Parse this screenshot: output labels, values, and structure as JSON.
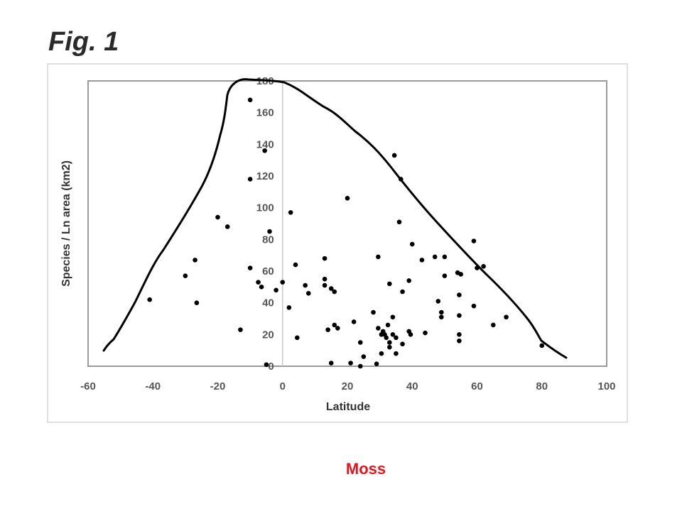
{
  "figure": {
    "title": "Fig. 1",
    "caption": "Moss"
  },
  "chart_data": {
    "type": "scatter",
    "xlabel": "Latitude",
    "ylabel": "Species / Ln area (km2)",
    "xlim": [
      -60,
      100
    ],
    "ylim": [
      0,
      180
    ],
    "xticks": [
      "-60",
      "-40",
      "-20",
      "0",
      "20",
      "40",
      "60",
      "80",
      "100"
    ],
    "yticks": [
      "0",
      "20",
      "40",
      "60",
      "80",
      "100",
      "120",
      "140",
      "160",
      "180"
    ],
    "grid": false,
    "series": [
      {
        "points": [
          [
            -41,
            42
          ],
          [
            -30,
            57
          ],
          [
            -27,
            67
          ],
          [
            -26.5,
            40
          ],
          [
            -20,
            94
          ],
          [
            -17,
            88
          ],
          [
            -13,
            23
          ],
          [
            -10,
            168
          ],
          [
            -10,
            118
          ],
          [
            -10,
            62
          ],
          [
            -7.5,
            53
          ],
          [
            -6.5,
            50
          ],
          [
            -5.5,
            136
          ],
          [
            -5,
            1
          ],
          [
            -4,
            85
          ],
          [
            -2,
            48
          ],
          [
            0,
            53
          ],
          [
            2,
            37
          ],
          [
            2.5,
            97
          ],
          [
            4,
            64
          ],
          [
            4.5,
            18
          ],
          [
            7,
            51
          ],
          [
            8,
            46
          ],
          [
            13,
            68
          ],
          [
            13,
            55
          ],
          [
            13,
            51
          ],
          [
            14,
            23
          ],
          [
            15,
            49
          ],
          [
            15,
            2
          ],
          [
            16,
            47
          ],
          [
            16,
            26
          ],
          [
            17,
            24
          ],
          [
            20,
            106
          ],
          [
            21,
            2
          ],
          [
            22,
            28
          ],
          [
            24,
            0
          ],
          [
            24,
            15
          ],
          [
            25,
            6
          ],
          [
            28,
            34
          ],
          [
            29,
            1.5
          ],
          [
            29.5,
            69
          ],
          [
            29.5,
            24
          ],
          [
            30.5,
            20
          ],
          [
            30.5,
            8
          ],
          [
            31,
            22
          ],
          [
            31.5,
            20
          ],
          [
            32,
            18
          ],
          [
            32.5,
            26
          ],
          [
            33,
            15
          ],
          [
            33,
            52
          ],
          [
            33,
            12
          ],
          [
            34,
            20
          ],
          [
            34,
            31
          ],
          [
            34.5,
            133
          ],
          [
            35,
            8
          ],
          [
            35,
            18
          ],
          [
            36,
            91
          ],
          [
            36.5,
            118
          ],
          [
            37,
            47
          ],
          [
            37,
            14
          ],
          [
            39,
            54
          ],
          [
            39,
            22
          ],
          [
            39.5,
            20
          ],
          [
            40,
            77
          ],
          [
            43,
            67
          ],
          [
            44,
            21
          ],
          [
            47,
            69
          ],
          [
            48,
            41
          ],
          [
            49,
            34
          ],
          [
            49,
            31
          ],
          [
            50,
            57
          ],
          [
            50,
            69
          ],
          [
            54,
            59
          ],
          [
            54.5,
            32
          ],
          [
            54.5,
            45
          ],
          [
            54.5,
            20
          ],
          [
            54.5,
            16
          ],
          [
            55,
            58
          ],
          [
            59,
            79
          ],
          [
            59,
            38
          ],
          [
            60,
            62
          ],
          [
            62,
            63
          ],
          [
            65,
            26
          ],
          [
            69,
            31
          ],
          [
            80,
            13
          ]
        ]
      }
    ]
  }
}
